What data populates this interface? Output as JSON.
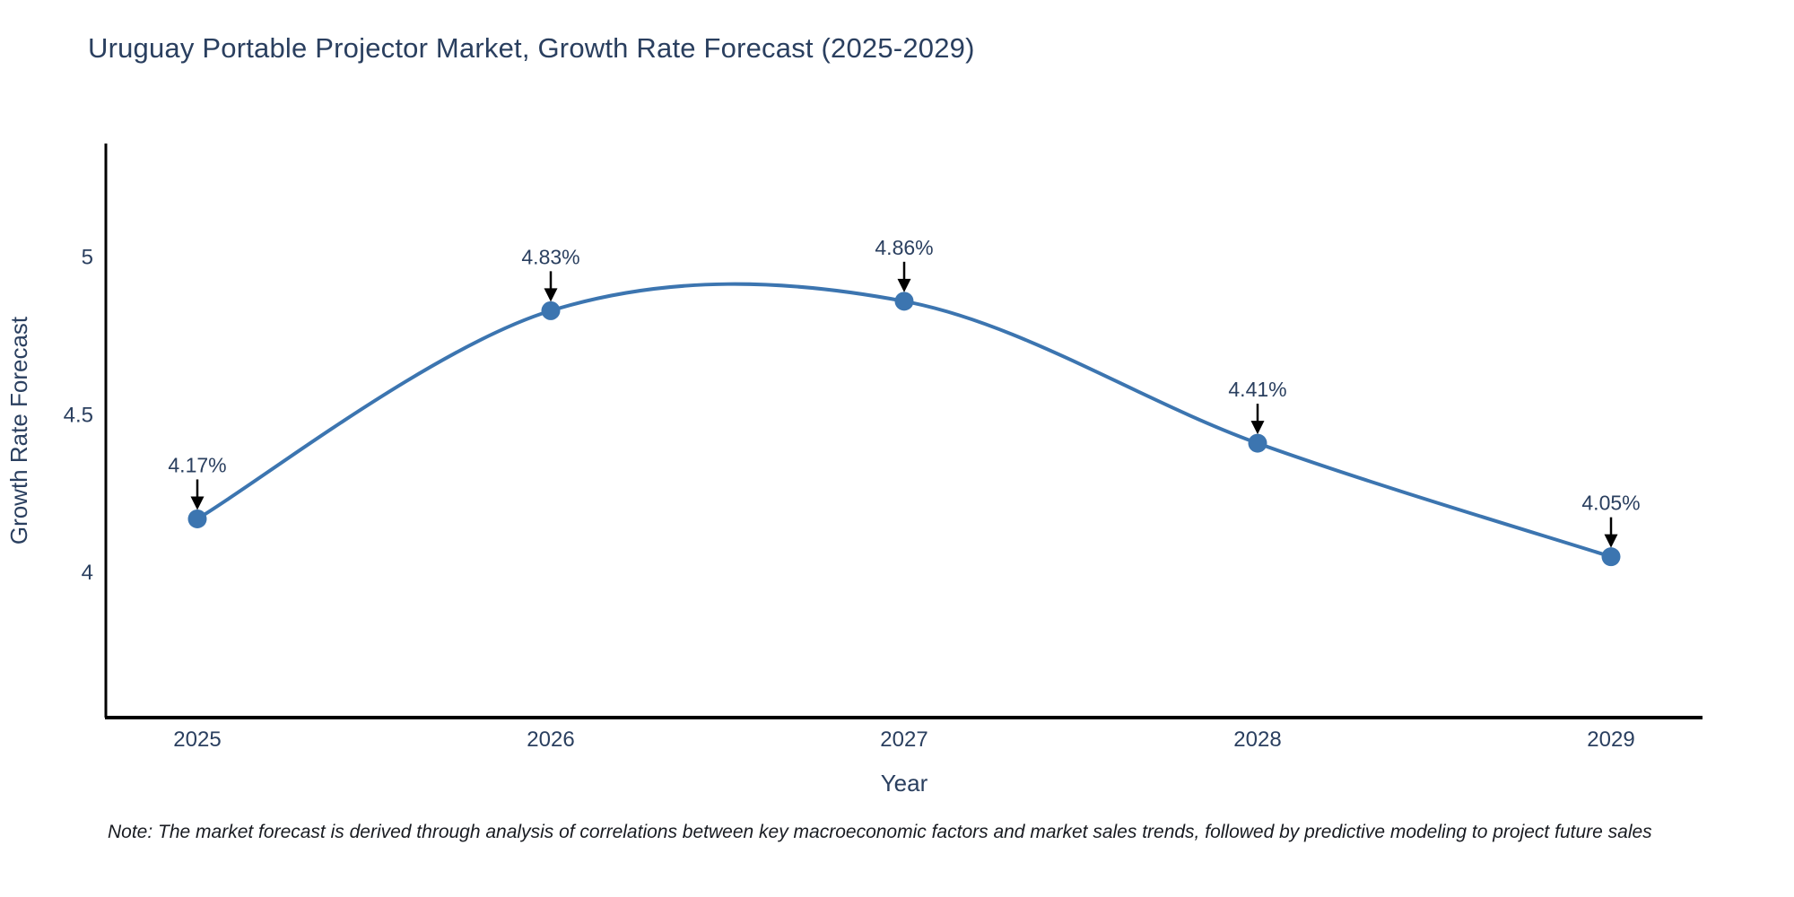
{
  "page": {
    "title": "Uruguay Portable Projector Market, Growth Rate Forecast (2025-2029)",
    "note": "Note: The market forecast is derived through analysis of correlations between key macroeconomic factors and market sales trends, followed by predictive modeling to project future sales"
  },
  "chart_data": {
    "type": "line",
    "title": "Uruguay Portable Projector Market, Growth Rate Forecast (2025-2029)",
    "x": [
      2025,
      2026,
      2027,
      2028,
      2029
    ],
    "series": [
      {
        "name": "Growth Rate Forecast",
        "values": [
          4.17,
          4.83,
          4.86,
          4.41,
          4.05
        ],
        "point_labels": [
          "4.17%",
          "4.83%",
          "4.86%",
          "4.41%",
          "4.05%"
        ]
      }
    ],
    "xlabel": "Year",
    "ylabel": "Growth Rate Forecast",
    "x_tick_labels": [
      "2025",
      "2026",
      "2027",
      "2028",
      "2029"
    ],
    "y_ticks": [
      4,
      4.5,
      5
    ],
    "y_tick_labels": [
      "4",
      "4.5",
      "5"
    ],
    "xlim": [
      2025,
      2029
    ],
    "ylim": [
      3.54,
      5.36
    ],
    "line_shape": "spline",
    "grid": false,
    "legend_position": "none",
    "annotations_have_arrows": true,
    "colors": {
      "line": "#3c75b0",
      "marker": "#3c75b0",
      "arrow": "#000000",
      "axis_line": "#000000",
      "tick_text": "#2a3f5f",
      "axis_title_text": "#2a3f5f",
      "annotation_text": "#2a3f5f",
      "title_text": "#2a3f5f",
      "background": "#ffffff"
    }
  }
}
